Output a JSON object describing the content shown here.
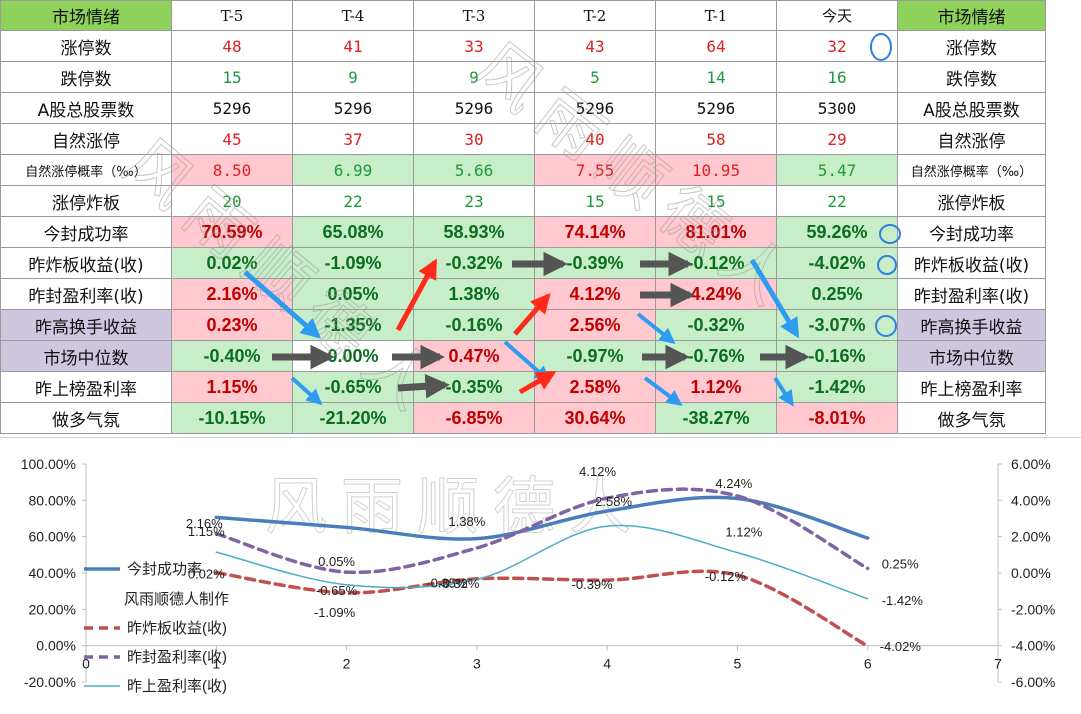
{
  "table": {
    "columns": [
      "市场情绪",
      "T-5",
      "T-4",
      "T-3",
      "T-2",
      "T-1",
      "今天",
      "市场情绪"
    ],
    "rows": [
      {
        "label": "涨停数",
        "values": [
          "48",
          "41",
          "33",
          "43",
          "64",
          "32"
        ],
        "kind": "num",
        "color": "red",
        "bg": [
          "w",
          "w",
          "w",
          "w",
          "w",
          "w"
        ]
      },
      {
        "label": "跌停数",
        "values": [
          "15",
          "9",
          "9",
          "5",
          "14",
          "16"
        ],
        "kind": "num",
        "color": "green",
        "bg": [
          "w",
          "w",
          "w",
          "w",
          "w",
          "w"
        ]
      },
      {
        "label": "A股总股票数",
        "values": [
          "5296",
          "5296",
          "5296",
          "5296",
          "5296",
          "5300"
        ],
        "kind": "num",
        "color": "black",
        "bg": [
          "w",
          "w",
          "w",
          "w",
          "w",
          "w"
        ]
      },
      {
        "label": "自然涨停",
        "values": [
          "45",
          "37",
          "30",
          "40",
          "58",
          "29"
        ],
        "kind": "num",
        "color": "red",
        "bg": [
          "w",
          "w",
          "w",
          "w",
          "w",
          "w"
        ]
      },
      {
        "label": "自然涨停概率（‰）",
        "values": [
          "8.50",
          "6.99",
          "5.66",
          "7.55",
          "10.95",
          "5.47"
        ],
        "kind": "num",
        "color": "mixed",
        "colors": [
          "red",
          "green",
          "green",
          "red",
          "red",
          "green"
        ],
        "bg": [
          "p",
          "g",
          "g",
          "p",
          "p",
          "g"
        ],
        "small": true
      },
      {
        "label": "涨停炸板",
        "values": [
          "20",
          "22",
          "23",
          "15",
          "15",
          "22"
        ],
        "kind": "num",
        "color": "green",
        "bg": [
          "w",
          "w",
          "w",
          "w",
          "w",
          "w"
        ]
      },
      {
        "label": "今封成功率",
        "values": [
          "70.59%",
          "65.08%",
          "58.93%",
          "74.14%",
          "81.01%",
          "59.26%"
        ],
        "kind": "pct",
        "colors": [
          "dred",
          "dgreen",
          "dgreen",
          "dred",
          "dred",
          "dgreen"
        ],
        "bg": [
          "p",
          "g",
          "g",
          "p",
          "p",
          "g"
        ]
      },
      {
        "label": "昨炸板收益(收)",
        "values": [
          "0.02%",
          "-1.09%",
          "-0.32%",
          "-0.39%",
          "-0.12%",
          "-4.02%"
        ],
        "kind": "pct",
        "colors": [
          "dgreen",
          "dgreen",
          "dgreen",
          "dgreen",
          "dgreen",
          "dgreen"
        ],
        "bg": [
          "g",
          "g",
          "g",
          "g",
          "g",
          "g"
        ]
      },
      {
        "label": "昨封盈利率(收)",
        "values": [
          "2.16%",
          "0.05%",
          "1.38%",
          "4.12%",
          "4.24%",
          "0.25%"
        ],
        "kind": "pct",
        "colors": [
          "dred",
          "dgreen",
          "dgreen",
          "dred",
          "dred",
          "dgreen"
        ],
        "bg": [
          "p",
          "g",
          "g",
          "p",
          "p",
          "g"
        ]
      },
      {
        "label": "昨高换手收益",
        "values": [
          "0.23%",
          "-1.35%",
          "-0.16%",
          "2.56%",
          "-0.32%",
          "-3.07%"
        ],
        "kind": "pct",
        "colors": [
          "dred",
          "dgreen",
          "dgreen",
          "dred",
          "dgreen",
          "dgreen"
        ],
        "bg": [
          "p",
          "g",
          "g",
          "p",
          "g",
          "g"
        ],
        "purple": true
      },
      {
        "label": "市场中位数",
        "values": [
          "-0.40%",
          "0.00%",
          "0.47%",
          "-0.97%",
          "-0.76%",
          "-0.16%"
        ],
        "kind": "pct",
        "colors": [
          "dgreen",
          "dgreen",
          "dred",
          "dgreen",
          "dgreen",
          "dgreen"
        ],
        "bg": [
          "g",
          "w",
          "p",
          "g",
          "g",
          "g"
        ],
        "purple": true
      },
      {
        "label": "昨上榜盈利率",
        "values": [
          "1.15%",
          "-0.65%",
          "-0.35%",
          "2.58%",
          "1.12%",
          "-1.42%"
        ],
        "kind": "pct",
        "colors": [
          "dred",
          "dgreen",
          "dgreen",
          "dred",
          "dred",
          "dgreen"
        ],
        "bg": [
          "p",
          "g",
          "g",
          "p",
          "p",
          "g"
        ]
      },
      {
        "label": "做多气氛",
        "values": [
          "-10.15%",
          "-21.20%",
          "-6.85%",
          "30.64%",
          "-38.27%",
          "-8.01%"
        ],
        "kind": "pct",
        "colors": [
          "dgreen",
          "dgreen",
          "dred",
          "dred",
          "dgreen",
          "dred"
        ],
        "bg": [
          "g",
          "g",
          "p",
          "p",
          "g",
          "p"
        ]
      }
    ]
  },
  "watermark": "风雨顺德人",
  "colors": {
    "header_green": "#8ed15b",
    "cell_pink": "#ffc9cf",
    "cell_green": "#c7eec8",
    "row_purple": "#cfc6e0",
    "arrow_blue": "#2f9bf0",
    "arrow_red": "#ff2a1a",
    "arrow_dark": "#555555",
    "series_blue": "#4a7ebb",
    "series_red": "#c0504d",
    "series_purple": "#8064a2",
    "series_teal": "#4bacc6"
  },
  "chart_data": {
    "type": "line",
    "x": [
      1,
      2,
      3,
      4,
      5,
      6
    ],
    "xlim": [
      0,
      7
    ],
    "x_ticks": [
      "0",
      "1",
      "2",
      "3",
      "4",
      "5",
      "6",
      "7"
    ],
    "y_left_ticks": [
      "100.00%",
      "80.00%",
      "60.00%",
      "40.00%",
      "20.00%",
      "0.00%",
      "-20.00%"
    ],
    "y_left_lim": [
      -20,
      100
    ],
    "y_right_ticks": [
      "6.00%",
      "4.00%",
      "2.00%",
      "0.00%",
      "-2.00%",
      "-4.00%",
      "-6.00%"
    ],
    "y_right_lim": [
      -6,
      6
    ],
    "legend_placement": "left",
    "legend_note": "风雨顺德人制作",
    "series": [
      {
        "name": "今封成功率",
        "axis": "left",
        "style": "solid",
        "width": 3.5,
        "values": [
          70.59,
          65.08,
          58.93,
          74.14,
          81.01,
          59.26
        ],
        "labels": []
      },
      {
        "name": "昨炸板收益(收)",
        "axis": "right",
        "style": "dashed",
        "width": 3.5,
        "values": [
          0.02,
          -1.09,
          -0.32,
          -0.39,
          -0.12,
          -4.02
        ],
        "labels": [
          "0.02%",
          "-1.09%",
          "-0.32%",
          "-0.39%",
          "-0.12%",
          "-4.02%"
        ]
      },
      {
        "name": "昨封盈利率(收)",
        "axis": "right",
        "style": "dashed",
        "width": 3.5,
        "values": [
          2.16,
          0.05,
          1.38,
          4.12,
          4.24,
          0.25
        ],
        "labels": [
          "2.16%",
          "0.05%",
          "1.38%",
          "4.12%",
          "4.24%",
          "0.25%"
        ]
      },
      {
        "name": "昨上盈利率(收)",
        "axis": "right",
        "style": "solid",
        "width": 1.5,
        "values": [
          1.15,
          -0.65,
          -0.35,
          2.58,
          1.12,
          -1.42
        ],
        "labels": [
          "1.15%",
          "-0.65%",
          "-0.35%",
          "2.58%",
          "1.12%",
          "-1.42%"
        ]
      }
    ]
  }
}
